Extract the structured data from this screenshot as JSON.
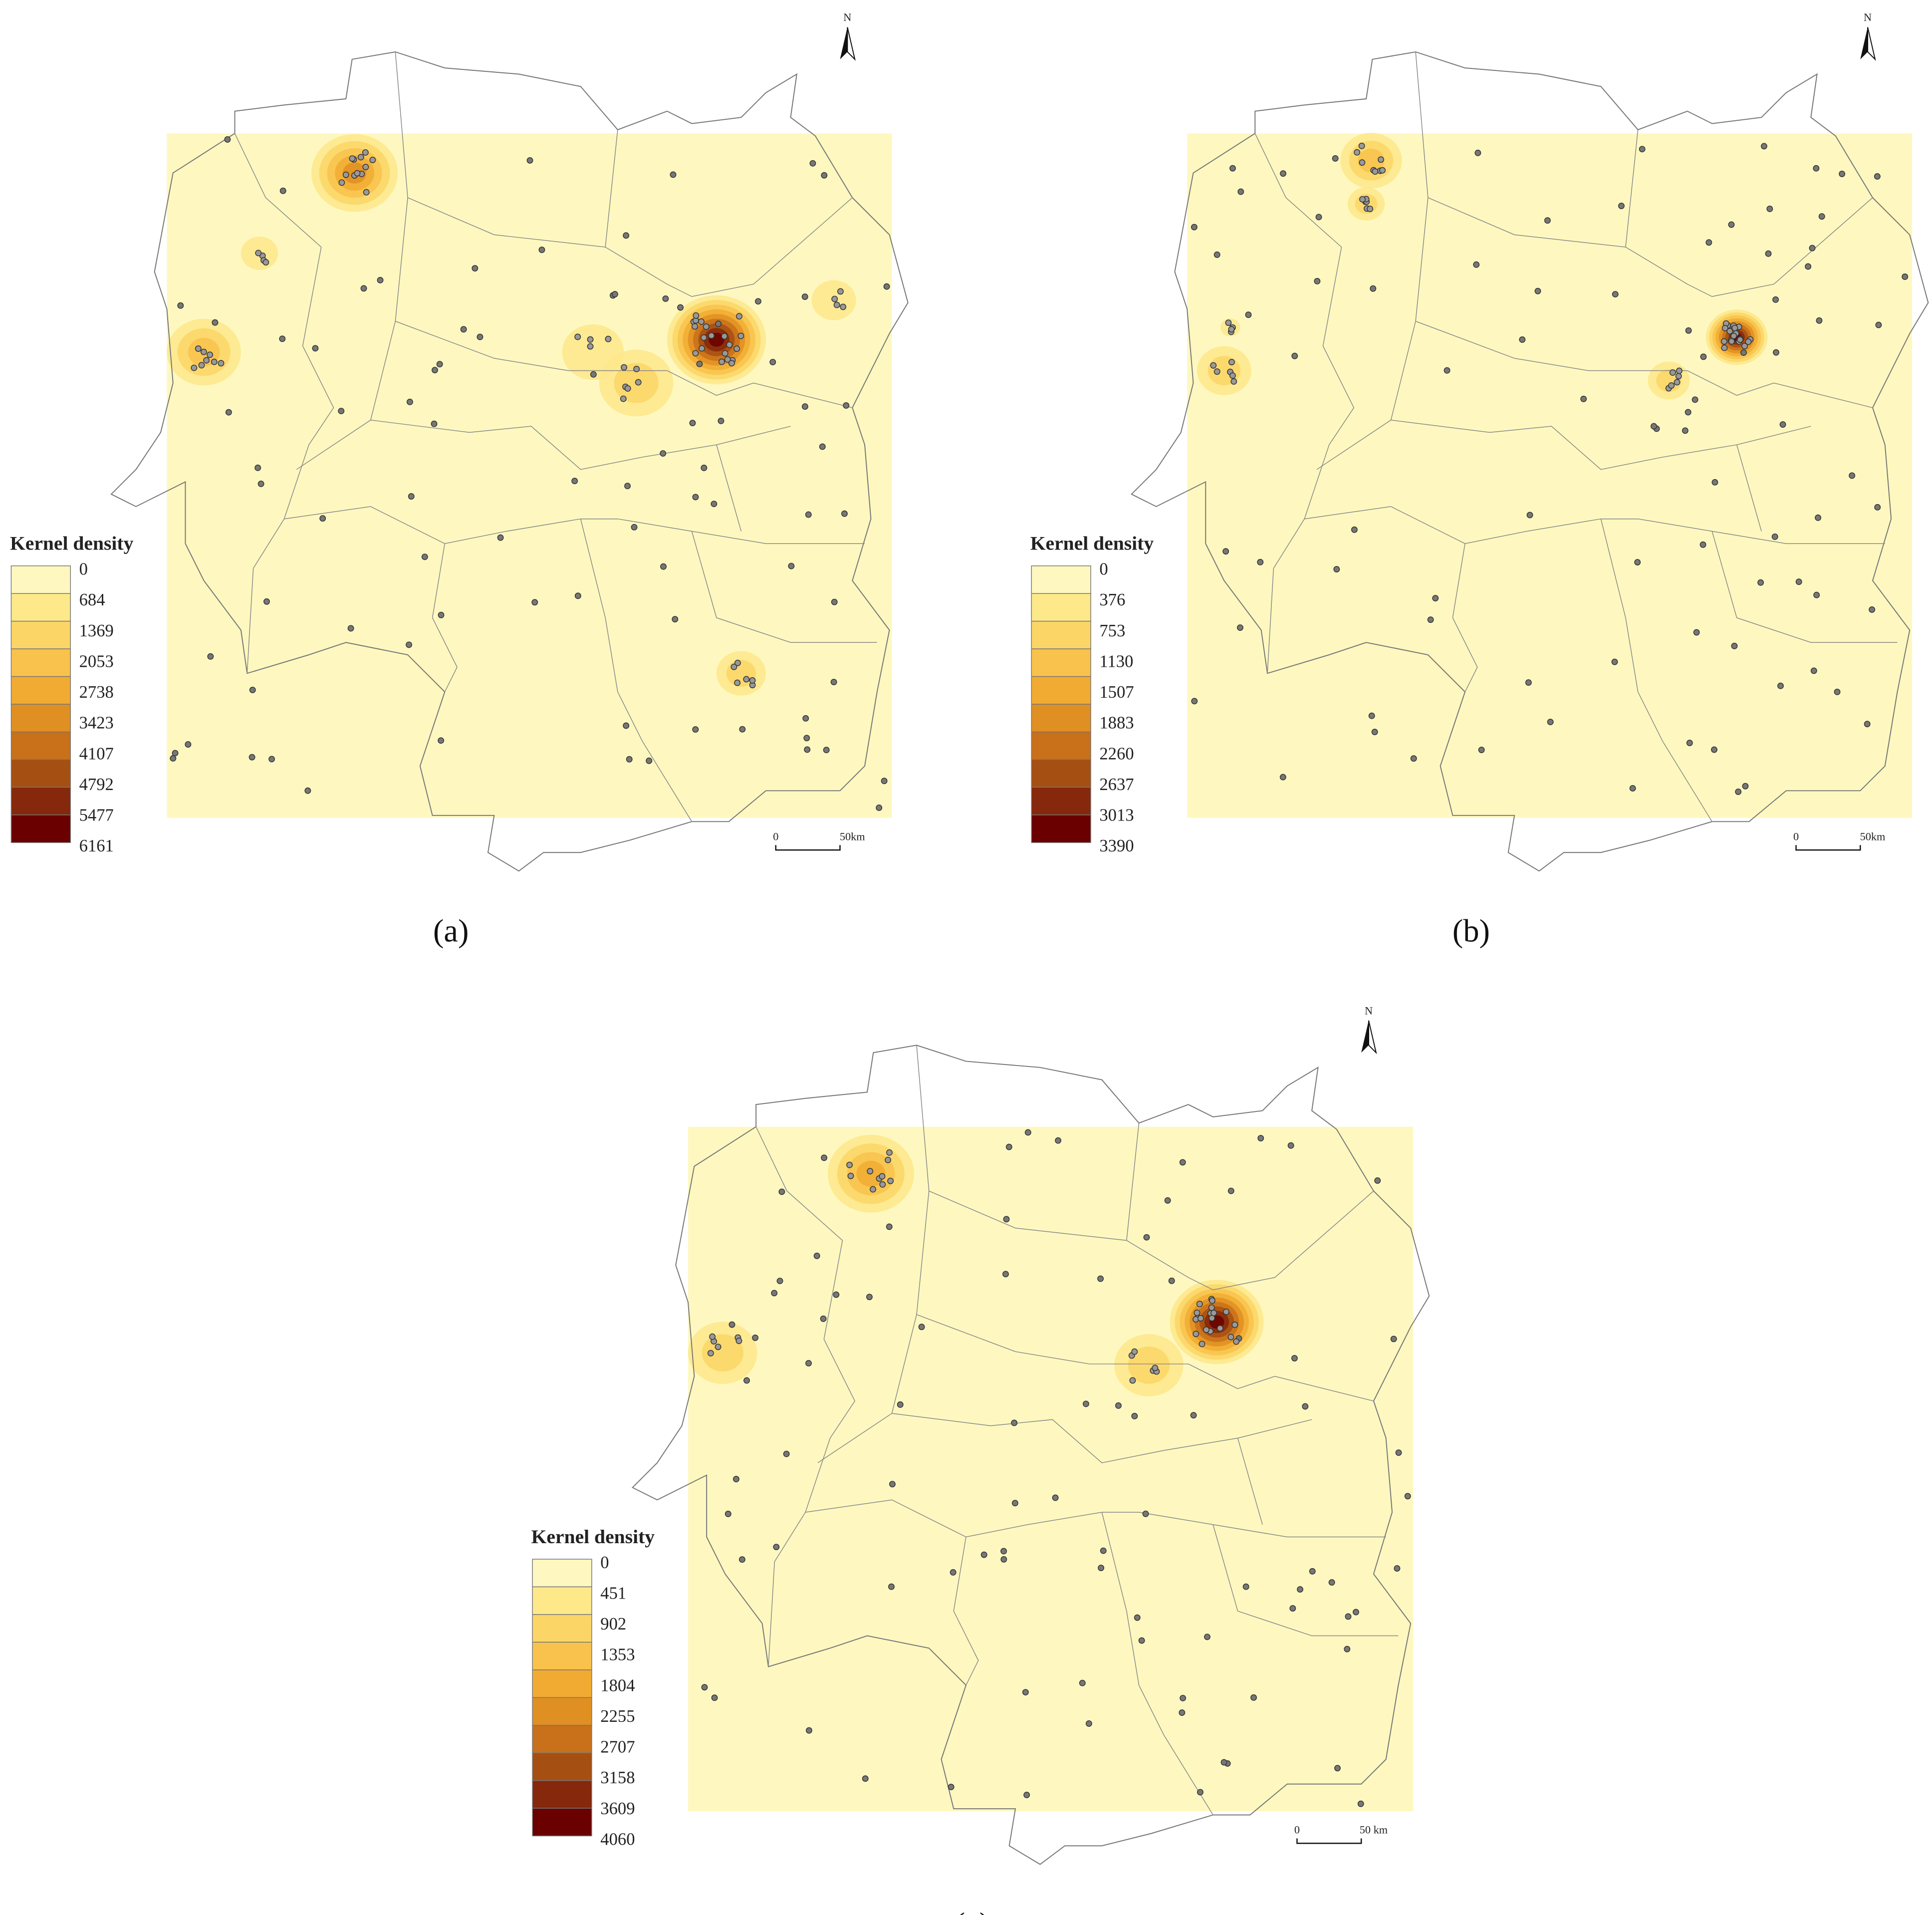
{
  "panels": [
    {
      "caption": "(a)",
      "north": "N",
      "scale": {
        "start": "0",
        "end": "50km"
      },
      "legend": {
        "title": "Kernel density",
        "labels": [
          0,
          684,
          1369,
          2053,
          2738,
          3423,
          4107,
          4792,
          5477,
          6161
        ]
      }
    },
    {
      "caption": "(b)",
      "north": "N",
      "scale": {
        "start": "0",
        "end": "50km"
      },
      "legend": {
        "title": "Kernel density",
        "labels": [
          0,
          376,
          753,
          1130,
          1507,
          1883,
          2260,
          2637,
          3013,
          3390
        ]
      }
    },
    {
      "caption": "(c)",
      "north": "N",
      "scale": {
        "start": "0",
        "end": "50 km"
      },
      "legend": {
        "title": "Kernel density",
        "labels": [
          0,
          451,
          902,
          1353,
          1804,
          2255,
          2707,
          3158,
          3609,
          4060
        ]
      }
    }
  ]
}
